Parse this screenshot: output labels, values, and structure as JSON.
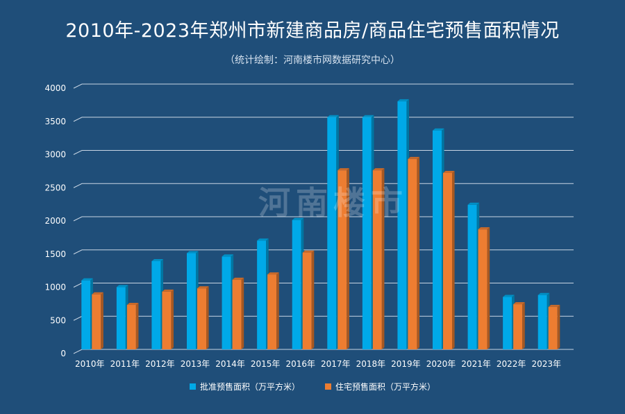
{
  "chart_data": {
    "type": "bar",
    "title": "2010年-2023年郑州市新建商品房/商品住宅预售面积情况",
    "subtitle": "（统计绘制：河南楼市网数据研究中心）",
    "categories": [
      "2010年",
      "2011年",
      "2012年",
      "2013年",
      "2014年",
      "2015年",
      "2016年",
      "2017年",
      "2018年",
      "2019年",
      "2020年",
      "2021年",
      "2022年",
      "2023年"
    ],
    "series": [
      {
        "name": "批准预售面积（万平方米）",
        "color": "#00a9e8",
        "values": [
          1040,
          940,
          1330,
          1450,
          1400,
          1640,
          1950,
          3500,
          3500,
          3740,
          3300,
          2180,
          790,
          820
        ]
      },
      {
        "name": "住宅预售面积（万平方米）",
        "color": "#ed7d31",
        "values": [
          830,
          670,
          870,
          920,
          1050,
          1130,
          1460,
          2700,
          2700,
          2870,
          2660,
          1810,
          680,
          640
        ]
      }
    ],
    "ylim": [
      0,
      4000
    ],
    "yticks": [
      0,
      500,
      1000,
      1500,
      2000,
      2500,
      3000,
      3500,
      4000
    ],
    "grid": true,
    "legend_position": "bottom"
  },
  "watermark": "河南楼市"
}
